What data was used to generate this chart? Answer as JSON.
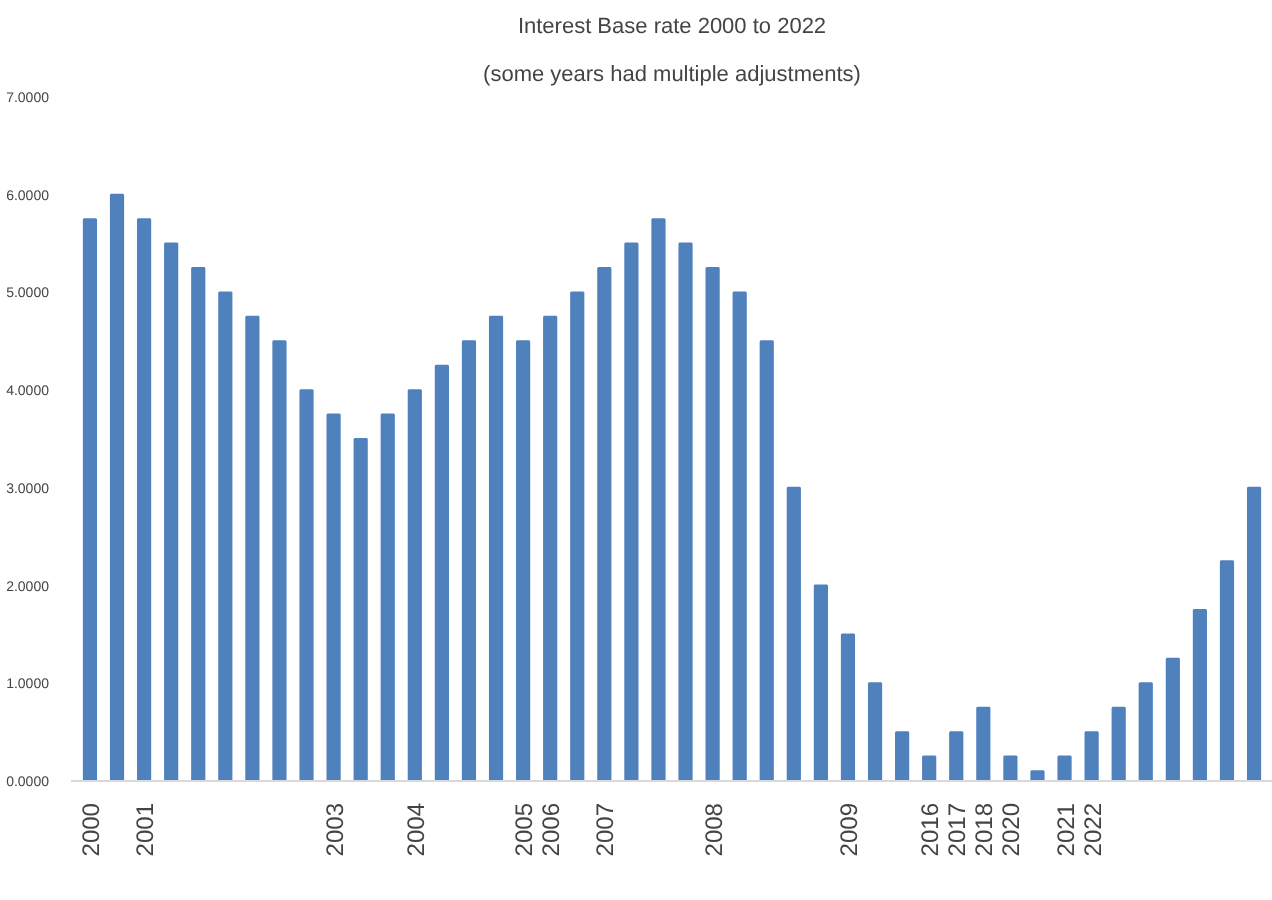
{
  "chart_data": {
    "type": "bar",
    "title": "Interest Base rate 2000 to 2022",
    "subtitle": "(some years had multiple adjustments)",
    "categories": [
      "2000",
      null,
      "2001",
      null,
      null,
      null,
      null,
      null,
      null,
      "2003",
      null,
      null,
      "2004",
      null,
      null,
      null,
      "2005",
      "2006",
      null,
      "2007",
      null,
      null,
      null,
      "2008",
      null,
      null,
      null,
      null,
      "2009",
      null,
      null,
      "2016",
      "2017",
      "2018",
      "2020",
      null,
      "2021",
      "2022",
      null,
      null,
      null,
      null,
      null,
      null
    ],
    "values": [
      5.75,
      6.0,
      5.75,
      5.5,
      5.25,
      5.0,
      4.75,
      4.5,
      4.0,
      3.75,
      3.5,
      3.75,
      4.0,
      4.25,
      4.5,
      4.75,
      4.5,
      4.75,
      5.0,
      5.25,
      5.5,
      5.75,
      5.5,
      5.25,
      5.0,
      4.5,
      3.0,
      2.0,
      1.5,
      1.0,
      0.5,
      0.25,
      0.5,
      0.75,
      0.25,
      0.1,
      0.25,
      0.5,
      0.75,
      1.0,
      1.25,
      1.75,
      2.25,
      3.0
    ],
    "color": "#4f81bd",
    "ylim": [
      0,
      7
    ],
    "yticks": [
      {
        "value": 0,
        "label": "0.0000"
      },
      {
        "value": 1,
        "label": "1.0000"
      },
      {
        "value": 2,
        "label": "2.0000"
      },
      {
        "value": 3,
        "label": "3.0000"
      },
      {
        "value": 4,
        "label": "4.0000"
      },
      {
        "value": 5,
        "label": "5.0000"
      },
      {
        "value": 6,
        "label": "6.0000"
      },
      {
        "value": 7,
        "label": "7.0000"
      }
    ],
    "grid": false
  }
}
